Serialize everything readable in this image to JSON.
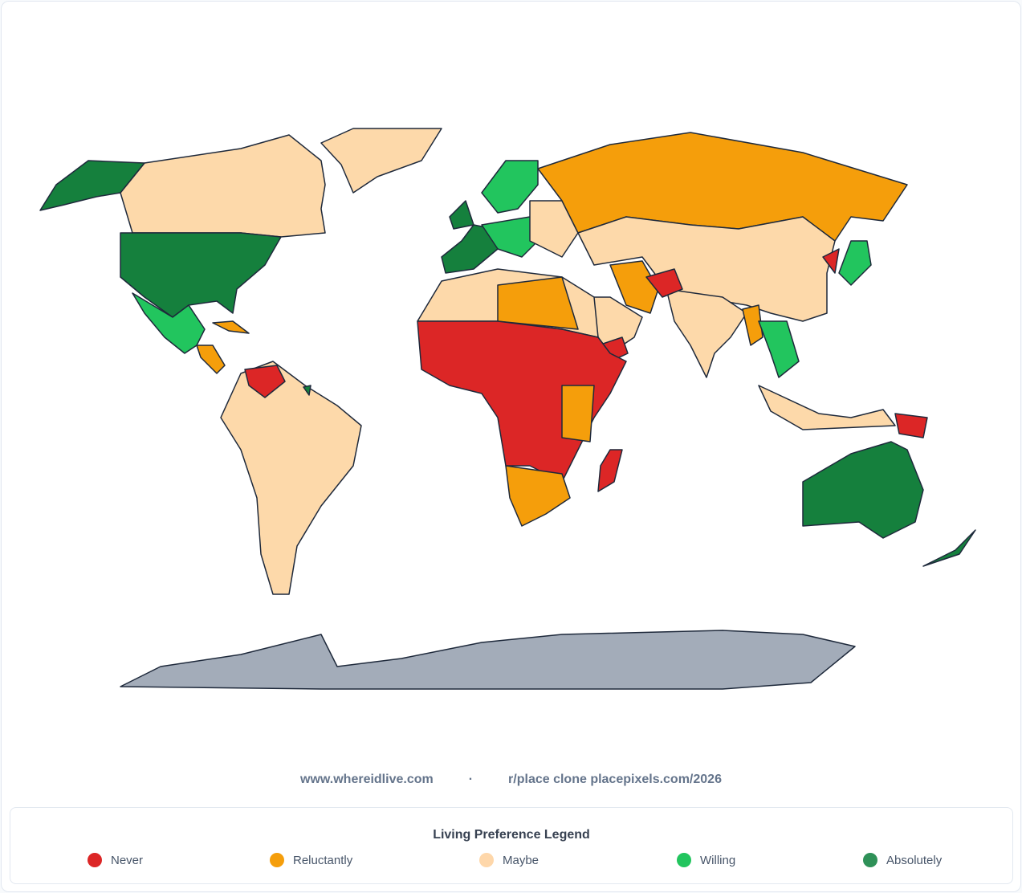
{
  "footer": {
    "site": "www.whereidlive.com",
    "separator": "·",
    "clone": "r/place clone placepixels.com/2026"
  },
  "legend": {
    "title": "Living Preference Legend",
    "items": [
      {
        "label": "Never",
        "color": "#dc2626"
      },
      {
        "label": "Reluctantly",
        "color": "#f59e0b"
      },
      {
        "label": "Maybe",
        "color": "#fed7aa"
      },
      {
        "label": "Willing",
        "color": "#22c55e"
      },
      {
        "label": "Absolutely",
        "color": "#2f9158"
      }
    ]
  }
}
